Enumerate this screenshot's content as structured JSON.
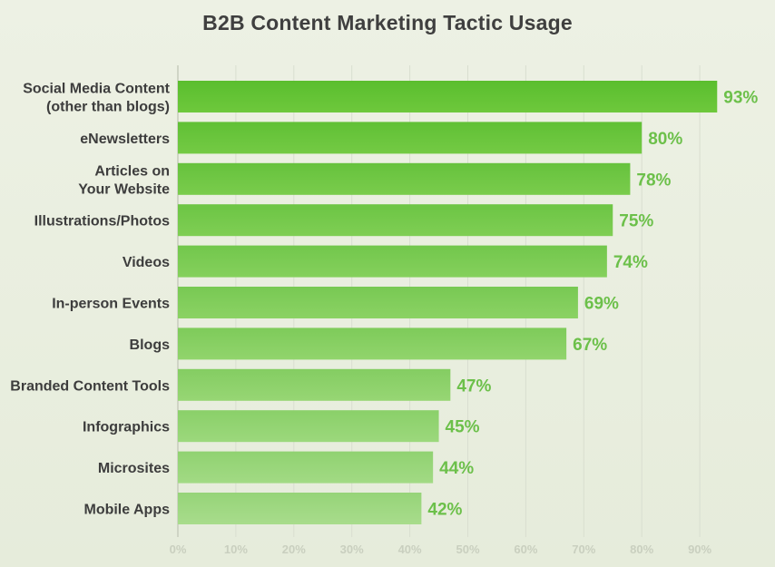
{
  "chart_data": {
    "type": "bar",
    "orientation": "horizontal",
    "title": "B2B Content Marketing Tactic Usage",
    "categories": [
      [
        "Social Media Content",
        "(other than blogs)"
      ],
      [
        "eNewsletters"
      ],
      [
        "Articles on",
        "Your Website"
      ],
      [
        "Illustrations/Photos"
      ],
      [
        "Videos"
      ],
      [
        "In-person Events"
      ],
      [
        "Blogs"
      ],
      [
        "Branded Content Tools"
      ],
      [
        "Infographics"
      ],
      [
        "Microsites"
      ],
      [
        "Mobile Apps"
      ]
    ],
    "values": [
      93,
      80,
      78,
      75,
      74,
      69,
      67,
      47,
      45,
      44,
      42
    ],
    "value_labels": [
      "93%",
      "80%",
      "78%",
      "75%",
      "74%",
      "69%",
      "67%",
      "47%",
      "45%",
      "44%",
      "42%"
    ],
    "x_ticks": [
      "0%",
      "10%",
      "20%",
      "30%",
      "40%",
      "50%",
      "60%",
      "70%",
      "80%",
      "90%"
    ],
    "xlim": [
      0,
      100
    ],
    "grid": "vertical",
    "legend": "none",
    "colors": {
      "bar_top": "#5cbf2e",
      "bar_bottom": "#a6d884",
      "value_text": "#6cc04a",
      "label_text": "#3d3d3d",
      "tick_text": "#c9cfbf"
    }
  }
}
